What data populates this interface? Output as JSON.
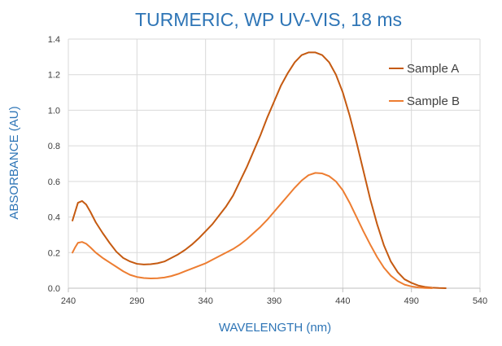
{
  "chart_data": {
    "type": "line",
    "title": "TURMERIC, WP UV-VIS, 18 ms",
    "xlabel": "WAVELENGTH (nm)",
    "ylabel": "ABSORBANCE (AU)",
    "xlim": [
      240,
      540
    ],
    "ylim": [
      0,
      1.4
    ],
    "xticks": [
      "240",
      "290",
      "340",
      "390",
      "440",
      "490",
      "540"
    ],
    "yticks": [
      "0.0",
      "0.2",
      "0.4",
      "0.6",
      "0.8",
      "1.0",
      "1.2",
      "1.4"
    ],
    "grid": true,
    "legend_position": "right",
    "colors": {
      "title": "#2e75b6",
      "grid": "#d9d9d9"
    },
    "series": [
      {
        "name": "Sample A",
        "color": "#c55a11",
        "points": [
          [
            243,
            0.38
          ],
          [
            245,
            0.43
          ],
          [
            247,
            0.48
          ],
          [
            250,
            0.49
          ],
          [
            253,
            0.47
          ],
          [
            256,
            0.43
          ],
          [
            260,
            0.37
          ],
          [
            265,
            0.31
          ],
          [
            270,
            0.255
          ],
          [
            275,
            0.205
          ],
          [
            280,
            0.17
          ],
          [
            285,
            0.15
          ],
          [
            290,
            0.137
          ],
          [
            295,
            0.133
          ],
          [
            300,
            0.135
          ],
          [
            305,
            0.14
          ],
          [
            310,
            0.15
          ],
          [
            315,
            0.17
          ],
          [
            320,
            0.19
          ],
          [
            325,
            0.215
          ],
          [
            330,
            0.245
          ],
          [
            335,
            0.28
          ],
          [
            340,
            0.32
          ],
          [
            345,
            0.36
          ],
          [
            350,
            0.41
          ],
          [
            355,
            0.46
          ],
          [
            360,
            0.52
          ],
          [
            365,
            0.6
          ],
          [
            370,
            0.68
          ],
          [
            375,
            0.77
          ],
          [
            380,
            0.86
          ],
          [
            385,
            0.96
          ],
          [
            390,
            1.05
          ],
          [
            395,
            1.14
          ],
          [
            400,
            1.21
          ],
          [
            405,
            1.27
          ],
          [
            410,
            1.31
          ],
          [
            415,
            1.325
          ],
          [
            420,
            1.325
          ],
          [
            425,
            1.31
          ],
          [
            430,
            1.27
          ],
          [
            435,
            1.2
          ],
          [
            440,
            1.1
          ],
          [
            445,
            0.97
          ],
          [
            450,
            0.82
          ],
          [
            455,
            0.66
          ],
          [
            460,
            0.5
          ],
          [
            465,
            0.36
          ],
          [
            470,
            0.24
          ],
          [
            475,
            0.15
          ],
          [
            480,
            0.09
          ],
          [
            485,
            0.05
          ],
          [
            490,
            0.03
          ],
          [
            495,
            0.015
          ],
          [
            500,
            0.007
          ],
          [
            505,
            0.003
          ],
          [
            510,
            0.001
          ],
          [
            515,
            0
          ]
        ]
      },
      {
        "name": "Sample B",
        "color": "#ed7d31",
        "points": [
          [
            243,
            0.2
          ],
          [
            245,
            0.23
          ],
          [
            247,
            0.255
          ],
          [
            250,
            0.26
          ],
          [
            253,
            0.25
          ],
          [
            256,
            0.23
          ],
          [
            260,
            0.2
          ],
          [
            265,
            0.17
          ],
          [
            270,
            0.145
          ],
          [
            275,
            0.12
          ],
          [
            280,
            0.095
          ],
          [
            285,
            0.075
          ],
          [
            290,
            0.063
          ],
          [
            295,
            0.057
          ],
          [
            300,
            0.055
          ],
          [
            305,
            0.056
          ],
          [
            310,
            0.06
          ],
          [
            315,
            0.068
          ],
          [
            320,
            0.08
          ],
          [
            325,
            0.095
          ],
          [
            330,
            0.11
          ],
          [
            335,
            0.125
          ],
          [
            340,
            0.14
          ],
          [
            345,
            0.16
          ],
          [
            350,
            0.18
          ],
          [
            355,
            0.2
          ],
          [
            360,
            0.22
          ],
          [
            365,
            0.245
          ],
          [
            370,
            0.275
          ],
          [
            375,
            0.31
          ],
          [
            380,
            0.345
          ],
          [
            385,
            0.385
          ],
          [
            390,
            0.43
          ],
          [
            395,
            0.475
          ],
          [
            400,
            0.52
          ],
          [
            405,
            0.565
          ],
          [
            410,
            0.605
          ],
          [
            415,
            0.635
          ],
          [
            420,
            0.648
          ],
          [
            425,
            0.645
          ],
          [
            430,
            0.63
          ],
          [
            435,
            0.6
          ],
          [
            440,
            0.55
          ],
          [
            445,
            0.48
          ],
          [
            450,
            0.4
          ],
          [
            455,
            0.32
          ],
          [
            460,
            0.245
          ],
          [
            465,
            0.175
          ],
          [
            470,
            0.115
          ],
          [
            475,
            0.07
          ],
          [
            480,
            0.04
          ],
          [
            485,
            0.02
          ],
          [
            490,
            0.01
          ],
          [
            495,
            0.004
          ],
          [
            500,
            0.001
          ],
          [
            505,
            0
          ]
        ]
      }
    ]
  }
}
